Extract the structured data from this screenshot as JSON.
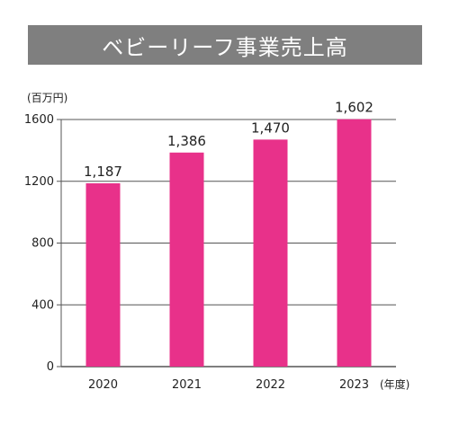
{
  "chart_data": {
    "type": "bar",
    "title": "ベビーリーフ事業売上高",
    "y_unit_label": "(百万円)",
    "x_unit_label": "(年度)",
    "categories": [
      "2020",
      "2021",
      "2022",
      "2023"
    ],
    "values": [
      1187,
      1386,
      1470,
      1602
    ],
    "value_labels": [
      "1,187",
      "1,386",
      "1,470",
      "1,602"
    ],
    "ylim": [
      0,
      1600
    ],
    "yticks": [
      0,
      400,
      800,
      1200,
      1600
    ],
    "grid": true,
    "bar_color": "#e8318a",
    "grid_color": "#555555",
    "title_bg_color": "#7f7f7f"
  }
}
